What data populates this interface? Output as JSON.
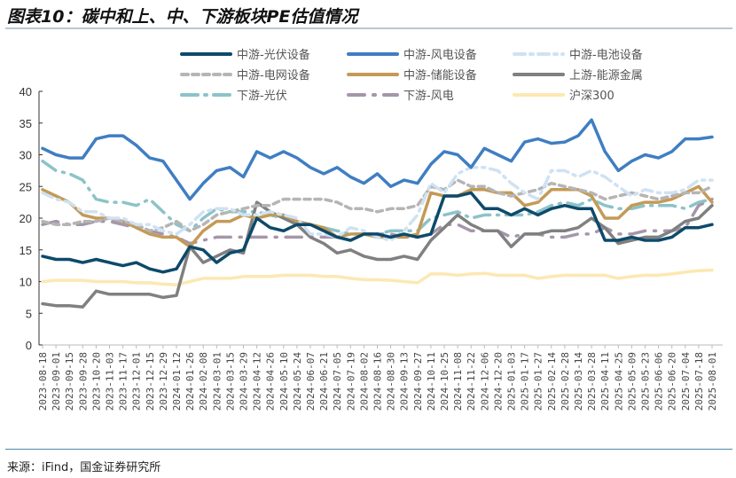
{
  "chart_data": {
    "type": "line",
    "title": "图表10：碳中和上、中、下游板块PE估值情况",
    "source": "来源：iFind，国金证券研究所",
    "ylim": [
      0,
      40
    ],
    "yticks": [
      0,
      5,
      10,
      15,
      20,
      25,
      30,
      35,
      40
    ],
    "legend_position": "top",
    "x": [
      "2023-08-18",
      "2023-09-01",
      "2023-09-15",
      "2023-09-28",
      "2023-10-20",
      "2023-11-03",
      "2023-11-17",
      "2023-12-01",
      "2023-12-15",
      "2023-12-29",
      "2024-01-12",
      "2024-01-26",
      "2024-02-08",
      "2024-03-01",
      "2024-03-15",
      "2024-03-29",
      "2024-04-12",
      "2024-04-26",
      "2024-05-10",
      "2024-05-24",
      "2024-06-07",
      "2024-06-21",
      "2024-07-05",
      "2024-07-19",
      "2024-08-02",
      "2024-08-16",
      "2024-08-30",
      "2024-09-13",
      "2024-09-27",
      "2024-10-11",
      "2024-10-25",
      "2024-11-08",
      "2024-11-22",
      "2024-12-06",
      "2024-12-20",
      "2025-01-03",
      "2025-01-17",
      "2025-01-27",
      "2025-02-14",
      "2025-02-28",
      "2025-03-14",
      "2025-03-28",
      "2025-04-11",
      "2025-04-25",
      "2025-05-09",
      "2025-05-23",
      "2025-06-06",
      "2025-06-20",
      "2025-07-04",
      "2025-07-18",
      "2025-08-01"
    ],
    "series": [
      {
        "name": "中游-光伏设备",
        "color": "#0d4a6b",
        "dash": "",
        "values": [
          14,
          13.5,
          13.5,
          13,
          13.5,
          13,
          12.5,
          13,
          12,
          11.5,
          12,
          15.5,
          15,
          13,
          14.5,
          15,
          20,
          18.5,
          18,
          19,
          19,
          18,
          17,
          16.5,
          17.5,
          17.5,
          17,
          17.5,
          17,
          17.5,
          23.5,
          23.5,
          24,
          21.5,
          21.5,
          20.5,
          21.5,
          20.5,
          21.5,
          22,
          21.5,
          21.5,
          16.5,
          16.5,
          17,
          16.5,
          16.5,
          17,
          18.5,
          18.5,
          19
        ]
      },
      {
        "name": "中游-风电设备",
        "color": "#3f7ec2",
        "dash": "",
        "values": [
          31,
          30,
          29.5,
          29.5,
          32.5,
          33,
          33,
          31.5,
          29.5,
          29,
          26,
          23,
          25.5,
          27.5,
          28,
          26.5,
          30.5,
          29.5,
          30.5,
          29.5,
          28,
          27,
          28,
          26.5,
          25.5,
          27,
          25,
          26,
          25.5,
          28.5,
          30.5,
          30,
          28,
          31,
          30,
          29,
          32,
          32.5,
          31.8,
          32,
          33,
          35.5,
          30.5,
          27.5,
          29,
          30,
          29.5,
          30.5,
          32.5,
          32.5,
          32.8
        ]
      },
      {
        "name": "中游-电池设备",
        "color": "#cfe2f3",
        "dash": "12 6 3 6",
        "values": [
          24,
          23,
          22.5,
          21,
          21,
          20,
          20,
          19,
          19,
          18,
          17.5,
          19,
          21,
          21.5,
          21.5,
          20.5,
          20.5,
          21,
          20.5,
          20,
          17.5,
          17.5,
          17,
          18.5,
          18,
          17,
          16.5,
          18,
          20.5,
          25.5,
          24,
          27,
          28,
          28,
          27.5,
          25.5,
          24,
          23,
          27.5,
          27.5,
          26.5,
          27.5,
          26.5,
          25,
          23.5,
          24.5,
          24,
          24,
          24.5,
          26,
          26
        ]
      },
      {
        "name": "中游-电网设备",
        "color": "#b5b5b5",
        "dash": "7 5",
        "values": [
          19.5,
          19,
          19,
          19.5,
          19.5,
          20,
          19.5,
          19,
          18,
          18.5,
          19.5,
          18,
          19,
          20.5,
          21,
          21.5,
          22,
          22,
          23,
          23,
          23,
          23,
          22.5,
          21.5,
          21.5,
          21,
          21.5,
          21.5,
          22,
          25,
          24.5,
          26,
          25,
          25,
          24,
          23.5,
          24,
          24.5,
          25.5,
          25,
          24.5,
          24,
          23,
          23.5,
          24,
          23.5,
          23,
          23.5,
          24,
          24,
          25
        ]
      },
      {
        "name": "中游-储能设备",
        "color": "#c49a56",
        "dash": "",
        "values": [
          24.5,
          23.5,
          22.5,
          20.5,
          20,
          20,
          19.5,
          18.5,
          17.5,
          17,
          17,
          15.5,
          18,
          19.5,
          19.5,
          20.5,
          20,
          20.5,
          20.5,
          19.5,
          19,
          18.5,
          17,
          17.5,
          17.5,
          17,
          17,
          17,
          17.5,
          24,
          23.5,
          23.5,
          24.5,
          24.5,
          24,
          24,
          22,
          22.5,
          24.5,
          24.5,
          24.5,
          23.5,
          20,
          20,
          22,
          22.5,
          22.5,
          23,
          24,
          25,
          22.5
        ]
      },
      {
        "name": "上游-能源金属",
        "color": "#808080",
        "dash": "",
        "values": [
          6.5,
          6.2,
          6.2,
          6,
          8.5,
          8,
          8,
          8,
          8,
          7.5,
          7.8,
          15.5,
          13,
          14,
          15,
          14.5,
          22.5,
          21,
          20,
          19,
          17,
          16,
          14.5,
          15,
          14,
          13.5,
          13.5,
          14,
          13.5,
          16.5,
          18.5,
          20.5,
          19,
          18,
          18,
          15.5,
          17.5,
          17.5,
          18,
          18,
          18.5,
          20,
          18.5,
          16,
          16.5,
          17,
          17,
          18,
          19.5,
          20,
          22
        ]
      },
      {
        "name": "下游-光伏",
        "color": "#8cc3c8",
        "dash": "18 8 2 8",
        "values": [
          29,
          27.5,
          27,
          26,
          23,
          22.5,
          22.5,
          22,
          23,
          21,
          19,
          18,
          20,
          21.5,
          21,
          21,
          21,
          20.5,
          20,
          19.5,
          19,
          18.5,
          18,
          17.5,
          17.5,
          17.5,
          18,
          18,
          18,
          20,
          20.5,
          21,
          20,
          20.5,
          20.5,
          20.5,
          20.5,
          21,
          22,
          22.5,
          22,
          23,
          22,
          21.5,
          21.5,
          22,
          22,
          22,
          21.5,
          22.5,
          23
        ]
      },
      {
        "name": "下游-风电",
        "color": "#a596ab",
        "dash": "18 10 2 10",
        "values": [
          19,
          19.5,
          19,
          19,
          19.5,
          19.5,
          19,
          18.5,
          18,
          17.5,
          17,
          16,
          16.5,
          17,
          17,
          17,
          17,
          17,
          17,
          17,
          17,
          17,
          17,
          17.5,
          17.5,
          17.5,
          17.5,
          17,
          17,
          17.5,
          19,
          19,
          18,
          18,
          18,
          17,
          17.5,
          17.5,
          17,
          17,
          17.5,
          17.5,
          18.5,
          17.5,
          17.5,
          18,
          18,
          18,
          18.5,
          22,
          23
        ]
      },
      {
        "name": "沪深300",
        "color": "#fce8b2",
        "dash": "",
        "values": [
          10,
          10.2,
          10.2,
          10.2,
          10,
          10,
          10,
          9.8,
          9.8,
          9.6,
          9.5,
          10,
          10.5,
          10.5,
          10.5,
          10.8,
          10.8,
          10.8,
          11,
          11,
          11,
          10.8,
          10.8,
          10.5,
          10.3,
          10.3,
          10.2,
          10,
          9.8,
          11.2,
          11.2,
          11,
          11.2,
          11.3,
          11,
          11,
          11,
          10.5,
          10.8,
          11,
          11,
          11,
          11,
          10.5,
          10.8,
          11,
          11,
          11.2,
          11.5,
          11.7,
          11.8
        ]
      }
    ]
  }
}
